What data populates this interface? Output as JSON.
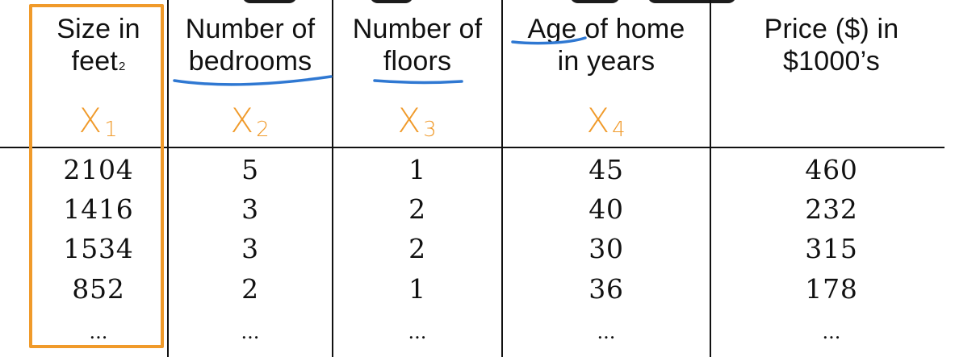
{
  "table": {
    "columns": [
      {
        "header_lines": [
          "Size in",
          "feet"
        ],
        "header_superscript": "2",
        "symbol_letter": "X",
        "symbol_index": "1"
      },
      {
        "header_lines": [
          "Number of",
          "bedrooms"
        ],
        "header_superscript": "",
        "symbol_letter": "X",
        "symbol_index": "2"
      },
      {
        "header_lines": [
          "Number of",
          "floors"
        ],
        "header_superscript": "",
        "symbol_letter": "X",
        "symbol_index": "3"
      },
      {
        "header_lines": [
          "Age of home",
          "in years"
        ],
        "header_superscript": "",
        "symbol_letter": "X",
        "symbol_index": "4"
      },
      {
        "header_lines": [
          "Price ($) in",
          "$1000’s"
        ],
        "header_superscript": "",
        "symbol_letter": "",
        "symbol_index": ""
      }
    ],
    "rows": [
      [
        "2104",
        "5",
        "1",
        "45",
        "460"
      ],
      [
        "1416",
        "3",
        "2",
        "40",
        "232"
      ],
      [
        "1534",
        "3",
        "2",
        "30",
        "315"
      ],
      [
        "852",
        "2",
        "1",
        "36",
        "178"
      ],
      [
        "...",
        "...",
        "...",
        "...",
        "..."
      ]
    ]
  },
  "annotations": {
    "highlight_color": "#f09a2a",
    "underline_color": "#2f78d2",
    "symbol_color": "#f09a2a"
  }
}
